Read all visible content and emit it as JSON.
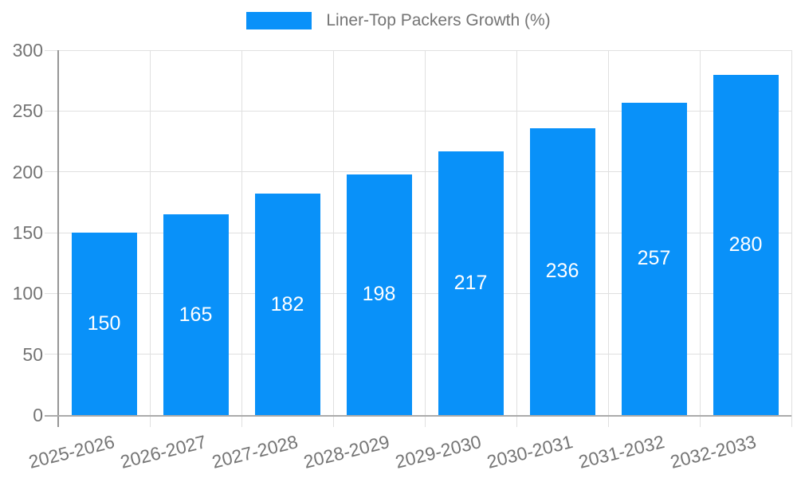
{
  "chart_data": {
    "type": "bar",
    "title": "",
    "legend": {
      "label": "Liner-Top Packers Growth (%)",
      "position": "top"
    },
    "categories": [
      "2025-2026",
      "2026-2027",
      "2027-2028",
      "2028-2029",
      "2029-2030",
      "2030-2031",
      "2031-2032",
      "2032-2033"
    ],
    "values": [
      150,
      165,
      182,
      198,
      217,
      236,
      257,
      280
    ],
    "xlabel": "",
    "ylabel": "",
    "ylim": [
      0,
      300
    ],
    "yticks": [
      0,
      50,
      100,
      150,
      200,
      250,
      300
    ],
    "grid": true,
    "legend_position": "top",
    "bar_color": "#0991f9",
    "value_label_color": "#ffffff",
    "axis_text_color": "#757575",
    "gridline_color": "#e0e0e0"
  }
}
